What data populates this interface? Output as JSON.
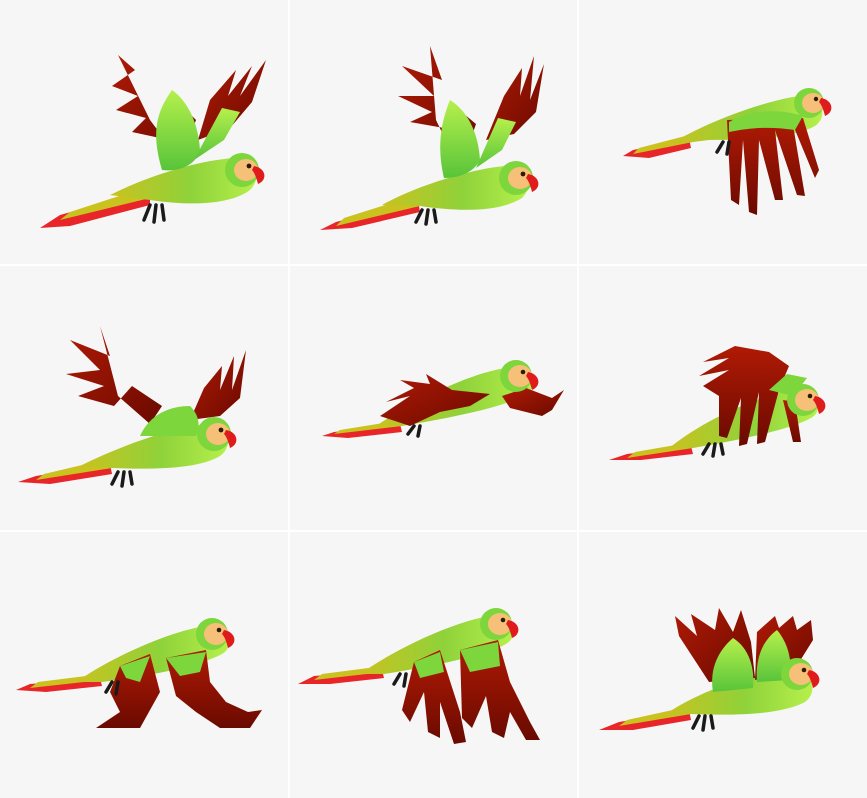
{
  "sprite_sheet": {
    "columns": 3,
    "rows": 3,
    "background_color": "#f6f6f6",
    "divider_color": "#ffffff",
    "colors": {
      "body_light": "#b6f04c",
      "body_mid": "#58c43a",
      "body_yellow": "#c9c21f",
      "wing_dark": "#7a0b00",
      "wing_red": "#b01a05",
      "tail_red": "#e8262a",
      "face": "#f6c078",
      "beak": "#e01b1b",
      "eye": "#2b1b00",
      "feet": "#1a1a1a"
    },
    "frames": [
      {
        "name": "frame-1",
        "pose": "wings-up"
      },
      {
        "name": "frame-2",
        "pose": "wings-up-high"
      },
      {
        "name": "frame-3",
        "pose": "wings-hanging-down"
      },
      {
        "name": "frame-4",
        "pose": "wings-up-spread"
      },
      {
        "name": "frame-5",
        "pose": "wings-level"
      },
      {
        "name": "frame-6",
        "pose": "wings-forward-down"
      },
      {
        "name": "frame-7",
        "pose": "wings-down"
      },
      {
        "name": "frame-8",
        "pose": "wings-down-back"
      },
      {
        "name": "frame-9",
        "pose": "wings-raised-forward"
      }
    ]
  }
}
